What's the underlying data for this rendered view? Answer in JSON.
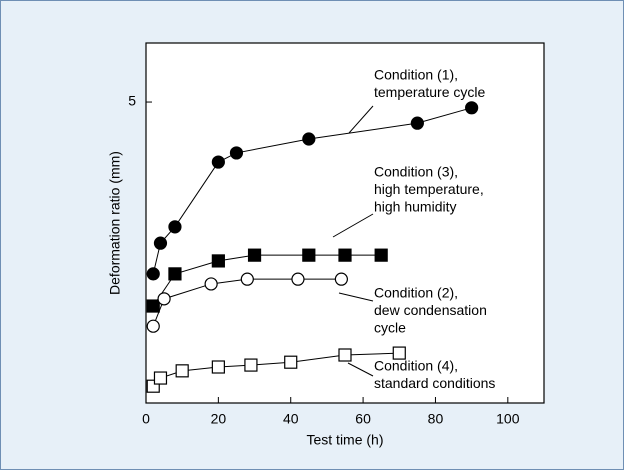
{
  "chart_data": {
    "type": "scatter",
    "x_label": "Test time (h)",
    "y_label": "Deformation ratio (mm)",
    "xlim": [
      0,
      110
    ],
    "ylim": [
      -1.27,
      6.23
    ],
    "xticks": [
      0,
      20,
      40,
      60,
      80,
      100
    ],
    "yticks": [
      5
    ],
    "series": [
      {
        "name": "Condition (1), temperature cycle",
        "label": [
          "Condition (1),",
          "temperature cycle"
        ],
        "marker": "circle",
        "filled": true,
        "color": "#000000",
        "x": [
          2,
          4,
          8,
          20,
          25,
          45,
          75,
          90
        ],
        "values": [
          1.42,
          2.06,
          2.4,
          3.75,
          3.94,
          4.23,
          4.56,
          4.88
        ]
      },
      {
        "name": "Condition (3), high temperature, high humidity",
        "label": [
          "Condition (3),",
          "high temperature,",
          "high humidity"
        ],
        "marker": "square",
        "filled": true,
        "color": "#000000",
        "x": [
          2,
          8,
          20,
          30,
          45,
          55,
          65
        ],
        "values": [
          0.75,
          1.42,
          1.69,
          1.81,
          1.81,
          1.81,
          1.81
        ]
      },
      {
        "name": "Condition (2), dew condensation cycle",
        "label": [
          "Condition (2),",
          "dew condensation",
          "cycle"
        ],
        "marker": "circle",
        "filled": false,
        "color": "#000000",
        "x": [
          2,
          5,
          18,
          28,
          42,
          54
        ],
        "values": [
          0.33,
          0.9,
          1.21,
          1.31,
          1.31,
          1.31
        ]
      },
      {
        "name": "Condition (4), standard conditions",
        "label": [
          "Condition (4),",
          "standard conditions"
        ],
        "marker": "square",
        "filled": false,
        "color": "#000000",
        "x": [
          2,
          4,
          10,
          20,
          29,
          40,
          55,
          70
        ],
        "values": [
          -0.92,
          -0.75,
          -0.6,
          -0.52,
          -0.48,
          -0.42,
          -0.27,
          -0.23
        ]
      }
    ]
  }
}
